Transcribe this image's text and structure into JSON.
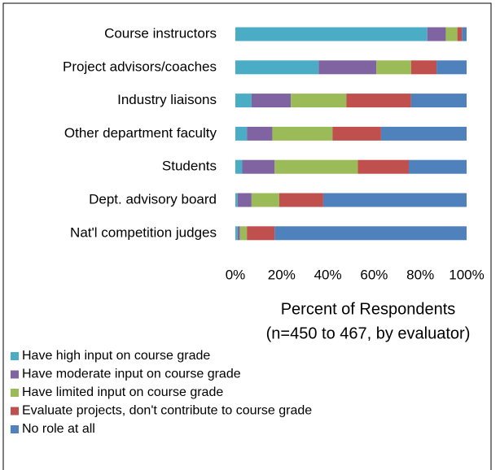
{
  "chart_data": {
    "type": "stacked_barh",
    "categories": [
      "Course instructors",
      "Project advisors/coaches",
      "Industry liaisons",
      "Other department faculty",
      "Students",
      "Dept. advisory board",
      "Nat'l competition judges"
    ],
    "series": [
      {
        "name": "Have high input on course grade",
        "color": "#4bacc6",
        "values": [
          83,
          36,
          7,
          5,
          3,
          1,
          1
        ]
      },
      {
        "name": "Have moderate input on course grade",
        "color": "#8064a2",
        "values": [
          8,
          25,
          17,
          11,
          14,
          6,
          1
        ]
      },
      {
        "name": "Have limited input on course grade",
        "color": "#9bbb59",
        "values": [
          5,
          15,
          24,
          26,
          36,
          12,
          3
        ]
      },
      {
        "name": "Evaluate projects, don't contribute to course grade",
        "color": "#c0504d",
        "values": [
          2,
          11,
          28,
          21,
          22,
          19,
          12
        ]
      },
      {
        "name": "No role at all",
        "color": "#4f81bd",
        "values": [
          2,
          13,
          24,
          37,
          25,
          62,
          83
        ]
      }
    ],
    "x_label": [
      "Percent of Respondents",
      "(n=450 to 467, by evaluator)"
    ],
    "xlim": [
      0,
      100
    ],
    "xticks": [
      {
        "value": 0,
        "label": "0%"
      },
      {
        "value": 20,
        "label": "20%"
      },
      {
        "value": 40,
        "label": "40%"
      },
      {
        "value": 60,
        "label": "60%"
      },
      {
        "value": 80,
        "label": "80%"
      },
      {
        "value": 100,
        "label": "100%"
      }
    ],
    "grid": false,
    "legend": "bottom"
  }
}
